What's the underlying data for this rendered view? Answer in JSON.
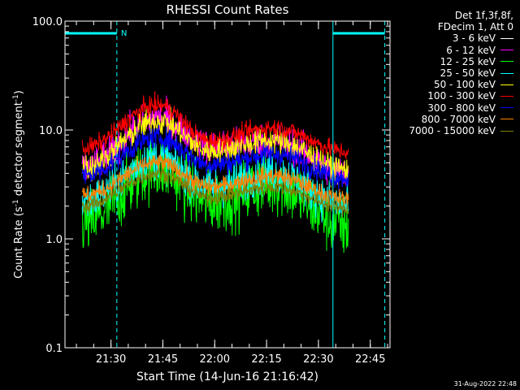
{
  "chart_data": {
    "type": "line",
    "title": "RHESSI Count Rates",
    "xlabel": "Start Time (14-Jun-16 21:16:42)",
    "ylabel_main": "Count Rate (s",
    "ylabel_sup": "-1",
    "ylabel_mid": " detector segment",
    "ylabel_sup2": "-1",
    "ylabel_end": ")",
    "yscale": "log",
    "ylim": [
      0.1,
      100
    ],
    "y_ticks": [
      {
        "value": 0.1,
        "label": "0.1"
      },
      {
        "value": 1,
        "label": "1.0"
      },
      {
        "value": 10,
        "label": "10.0"
      },
      {
        "value": 100,
        "label": "100.0"
      }
    ],
    "xlim_minutes": [
      0,
      94
    ],
    "x_ticks": [
      {
        "minute": 13.3,
        "label": "21:30"
      },
      {
        "minute": 28.3,
        "label": "21:45"
      },
      {
        "minute": 43.3,
        "label": "22:00"
      },
      {
        "minute": 58.3,
        "label": "22:15"
      },
      {
        "minute": 73.3,
        "label": "22:30"
      },
      {
        "minute": 88.3,
        "label": "22:45"
      }
    ],
    "night_marker": "N",
    "legend_header": [
      "Det 1f,3f,8f,",
      "FDecim 1, Att 0"
    ],
    "series": [
      {
        "name": "3 - 6 keV",
        "color": "#000000",
        "profile": [
          1.2,
          4.5,
          3.0,
          4.5,
          1.1
        ],
        "noise": 0.35
      },
      {
        "name": "6 - 12 keV",
        "color": "#ff00ff",
        "profile": [
          4.5,
          13.0,
          7.0,
          8.0,
          4.0
        ],
        "noise": 0.18
      },
      {
        "name": "12 - 25 keV",
        "color": "#00ff00",
        "profile": [
          1.4,
          4.5,
          2.2,
          3.2,
          1.3
        ],
        "noise": 0.35
      },
      {
        "name": "25 - 50 keV",
        "color": "#00ffff",
        "profile": [
          2.2,
          5.5,
          3.0,
          4.0,
          2.0
        ],
        "noise": 0.22
      },
      {
        "name": "50 - 100 keV",
        "color": "#ffff00",
        "profile": [
          4.5,
          12.0,
          6.5,
          8.0,
          4.3
        ],
        "noise": 0.15
      },
      {
        "name": "100 - 300 keV",
        "color": "#ff0000",
        "profile": [
          6.8,
          17.0,
          8.0,
          10.5,
          6.3
        ],
        "noise": 0.1
      },
      {
        "name": "300 - 800 keV",
        "color": "#0000ff",
        "profile": [
          3.8,
          8.5,
          4.8,
          6.0,
          3.6
        ],
        "noise": 0.12
      },
      {
        "name": "800 - 7000 keV",
        "color": "#ff8000",
        "profile": [
          2.5,
          5.0,
          3.0,
          3.8,
          2.3
        ],
        "noise": 0.1
      },
      {
        "name": "7000 - 15000 keV",
        "color": "#808000",
        "profile": [
          2.0,
          4.0,
          2.4,
          3.0,
          1.9
        ],
        "noise": 0.08
      }
    ],
    "profile_minutes": [
      5,
      27,
      42,
      60,
      82
    ],
    "data_minutes": [
      5,
      82
    ],
    "eclipse_segments": [
      {
        "start": 0,
        "end": 15,
        "label_visible": true
      },
      {
        "start": 77.5,
        "end": 92.5,
        "label_visible": false
      }
    ]
  },
  "legend": {
    "header1": "Det 1f,3f,8f,",
    "header2": "FDecim 1, Att 0"
  },
  "footer": {
    "date_stamp": "31-Aug-2022 22:48"
  }
}
